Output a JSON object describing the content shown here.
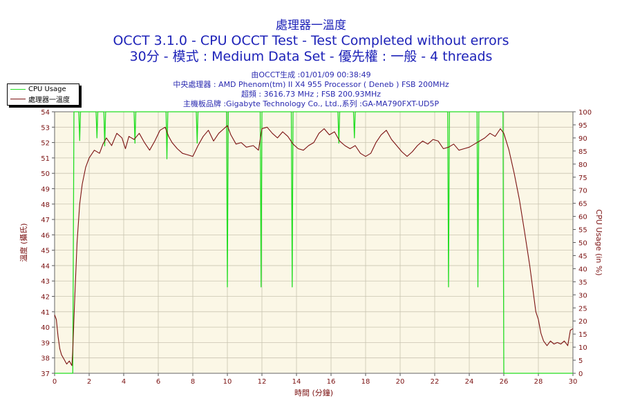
{
  "header": {
    "title_line1": "處理器一溫度",
    "title_line2": "OCCT 3.1.0 - CPU OCCT Test - Test Completed without errors",
    "title_line3": "30分 - 模式 : Medium Data Set - 優先權 : 一般 - 4 threads"
  },
  "info": {
    "line1": "由OCCT生成 :01/01/09 00:38:49",
    "line2": "中央處理器 : AMD Phenom(tm) II X4 955 Processor ( Deneb ) FSB 200MHz",
    "line3": "超頻 : 3616.73 MHz ; FSB 200.93MHz",
    "line4": "主機板品牌 :Gigabyte Technology Co., Ltd.,系列 :GA-MA790FXT-UD5P"
  },
  "colors": {
    "plot_bg": "#fbf7e6",
    "temp_line": "#7a1010",
    "cpu_line": "#22dd22",
    "grid": "#c9c4b0",
    "axis_text": "#7a1010",
    "title": "#1d22b8"
  },
  "chart_data": {
    "type": "line",
    "xlabel": "時間 (分鐘)",
    "ylabel_left": "溫度 (攝氏)",
    "ylabel_right": "CPU Usage (in %)",
    "xlim": [
      0,
      30
    ],
    "ylim_left": [
      37,
      54
    ],
    "ylim_right": [
      0,
      100
    ],
    "x_ticks": [
      0,
      2,
      4,
      6,
      8,
      10,
      12,
      14,
      16,
      18,
      20,
      22,
      24,
      26,
      28,
      30
    ],
    "y_left_ticks": [
      37,
      38,
      39,
      40,
      41,
      42,
      43,
      44,
      45,
      46,
      47,
      48,
      49,
      50,
      51,
      52,
      53,
      54
    ],
    "y_right_ticks": [
      0,
      5,
      10,
      15,
      20,
      25,
      30,
      35,
      40,
      45,
      50,
      55,
      60,
      65,
      70,
      75,
      80,
      85,
      90,
      95,
      100
    ],
    "grid": true,
    "legend_position": "top-left",
    "series": [
      {
        "name": "CPU Usage",
        "axis": "right",
        "points": [
          [
            0,
            0
          ],
          [
            0.95,
            0
          ],
          [
            1.05,
            0
          ],
          [
            1.12,
            100
          ],
          [
            1.4,
            100
          ],
          [
            1.45,
            89
          ],
          [
            1.5,
            100
          ],
          [
            2.4,
            100
          ],
          [
            2.45,
            90
          ],
          [
            2.5,
            100
          ],
          [
            2.85,
            100
          ],
          [
            2.9,
            87
          ],
          [
            2.95,
            100
          ],
          [
            4.6,
            100
          ],
          [
            4.65,
            88
          ],
          [
            4.7,
            100
          ],
          [
            6.45,
            100
          ],
          [
            6.5,
            82
          ],
          [
            6.55,
            100
          ],
          [
            8.2,
            100
          ],
          [
            8.25,
            88
          ],
          [
            8.3,
            100
          ],
          [
            9.95,
            100
          ],
          [
            10.0,
            33
          ],
          [
            10.05,
            100
          ],
          [
            11.9,
            100
          ],
          [
            11.95,
            33
          ],
          [
            12.0,
            100
          ],
          [
            13.7,
            100
          ],
          [
            13.75,
            33
          ],
          [
            13.8,
            100
          ],
          [
            16.4,
            100
          ],
          [
            16.45,
            88
          ],
          [
            16.5,
            100
          ],
          [
            17.3,
            100
          ],
          [
            17.35,
            90
          ],
          [
            17.4,
            100
          ],
          [
            22.75,
            100
          ],
          [
            22.8,
            33
          ],
          [
            22.85,
            100
          ],
          [
            24.45,
            100
          ],
          [
            24.5,
            33
          ],
          [
            24.55,
            100
          ],
          [
            25.95,
            100
          ],
          [
            26.0,
            0
          ],
          [
            30,
            0
          ]
        ]
      },
      {
        "name": "處理器一溫度",
        "axis": "left",
        "points": [
          [
            0,
            40.8
          ],
          [
            0.1,
            40.5
          ],
          [
            0.2,
            39.4
          ],
          [
            0.3,
            38.6
          ],
          [
            0.4,
            38.2
          ],
          [
            0.55,
            37.9
          ],
          [
            0.7,
            37.6
          ],
          [
            0.85,
            37.8
          ],
          [
            1.0,
            37.5
          ],
          [
            1.05,
            38.5
          ],
          [
            1.15,
            41.5
          ],
          [
            1.3,
            45.5
          ],
          [
            1.45,
            48
          ],
          [
            1.6,
            49.3
          ],
          [
            1.8,
            50.4
          ],
          [
            2.0,
            51.0
          ],
          [
            2.3,
            51.5
          ],
          [
            2.6,
            51.3
          ],
          [
            2.8,
            51.9
          ],
          [
            3.0,
            52.3
          ],
          [
            3.3,
            51.8
          ],
          [
            3.6,
            52.6
          ],
          [
            3.9,
            52.3
          ],
          [
            4.1,
            51.6
          ],
          [
            4.3,
            52.4
          ],
          [
            4.6,
            52.2
          ],
          [
            4.9,
            52.6
          ],
          [
            5.2,
            52.0
          ],
          [
            5.5,
            51.5
          ],
          [
            5.8,
            52.1
          ],
          [
            6.1,
            52.8
          ],
          [
            6.4,
            53.0
          ],
          [
            6.6,
            52.4
          ],
          [
            6.8,
            52.0
          ],
          [
            7.1,
            51.6
          ],
          [
            7.4,
            51.3
          ],
          [
            7.7,
            51.2
          ],
          [
            8.0,
            51.1
          ],
          [
            8.3,
            51.8
          ],
          [
            8.6,
            52.4
          ],
          [
            8.9,
            52.8
          ],
          [
            9.2,
            52.1
          ],
          [
            9.5,
            52.6
          ],
          [
            9.8,
            52.9
          ],
          [
            10.0,
            53.1
          ],
          [
            10.2,
            52.5
          ],
          [
            10.5,
            51.9
          ],
          [
            10.8,
            52.0
          ],
          [
            11.1,
            51.7
          ],
          [
            11.5,
            51.8
          ],
          [
            11.8,
            51.5
          ],
          [
            12.0,
            52.9
          ],
          [
            12.3,
            53.0
          ],
          [
            12.6,
            52.6
          ],
          [
            12.9,
            52.3
          ],
          [
            13.2,
            52.7
          ],
          [
            13.5,
            52.4
          ],
          [
            13.8,
            51.9
          ],
          [
            14.1,
            51.6
          ],
          [
            14.4,
            51.5
          ],
          [
            14.7,
            51.8
          ],
          [
            15.0,
            52.0
          ],
          [
            15.3,
            52.6
          ],
          [
            15.6,
            52.9
          ],
          [
            15.9,
            52.5
          ],
          [
            16.2,
            52.7
          ],
          [
            16.5,
            52.1
          ],
          [
            16.8,
            51.8
          ],
          [
            17.1,
            51.6
          ],
          [
            17.4,
            51.8
          ],
          [
            17.7,
            51.3
          ],
          [
            18.0,
            51.1
          ],
          [
            18.3,
            51.3
          ],
          [
            18.6,
            52.0
          ],
          [
            18.9,
            52.5
          ],
          [
            19.2,
            52.8
          ],
          [
            19.5,
            52.2
          ],
          [
            19.8,
            51.8
          ],
          [
            20.1,
            51.4
          ],
          [
            20.4,
            51.1
          ],
          [
            20.7,
            51.4
          ],
          [
            21.0,
            51.8
          ],
          [
            21.3,
            52.1
          ],
          [
            21.6,
            51.9
          ],
          [
            21.9,
            52.2
          ],
          [
            22.2,
            52.1
          ],
          [
            22.5,
            51.6
          ],
          [
            22.8,
            51.7
          ],
          [
            23.1,
            51.9
          ],
          [
            23.4,
            51.5
          ],
          [
            23.7,
            51.6
          ],
          [
            24.0,
            51.7
          ],
          [
            24.3,
            51.9
          ],
          [
            24.6,
            52.1
          ],
          [
            24.9,
            52.3
          ],
          [
            25.2,
            52.6
          ],
          [
            25.5,
            52.4
          ],
          [
            25.8,
            52.9
          ],
          [
            26.0,
            52.6
          ],
          [
            26.3,
            51.5
          ],
          [
            26.6,
            50.0
          ],
          [
            26.9,
            48.3
          ],
          [
            27.2,
            46.2
          ],
          [
            27.5,
            44.0
          ],
          [
            27.7,
            42.3
          ],
          [
            27.85,
            41.0
          ],
          [
            28.0,
            40.5
          ],
          [
            28.15,
            39.6
          ],
          [
            28.3,
            39.1
          ],
          [
            28.5,
            38.8
          ],
          [
            28.7,
            39.1
          ],
          [
            28.9,
            38.9
          ],
          [
            29.1,
            39.0
          ],
          [
            29.3,
            38.9
          ],
          [
            29.5,
            39.1
          ],
          [
            29.7,
            38.8
          ],
          [
            29.85,
            39.8
          ],
          [
            30.0,
            39.9
          ]
        ]
      }
    ]
  }
}
